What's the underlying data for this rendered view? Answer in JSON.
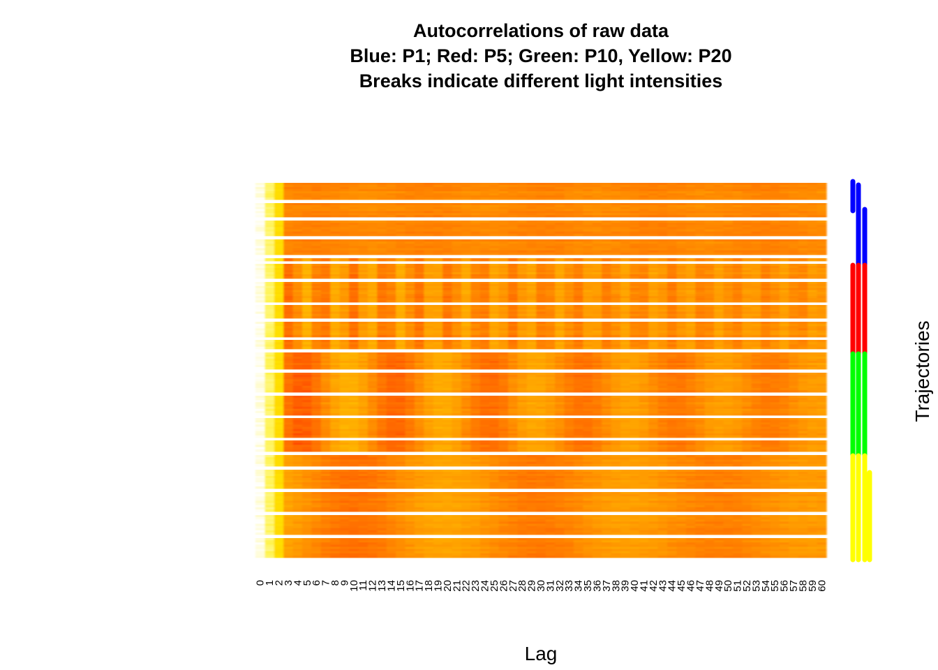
{
  "chart_data": {
    "type": "heatmap",
    "title": "Autocorrelations of raw data",
    "subtitle_lines": [
      "Blue: P1; Red: P5; Green: P10, Yellow: P20",
      "Breaks indicate different light intensities"
    ],
    "xlabel": "Lag",
    "ylabel": "Trajectories",
    "x_ticks": [
      0,
      1,
      2,
      3,
      4,
      5,
      6,
      7,
      8,
      9,
      10,
      11,
      12,
      13,
      14,
      15,
      16,
      17,
      18,
      19,
      20,
      21,
      22,
      23,
      24,
      25,
      26,
      27,
      28,
      29,
      30,
      31,
      32,
      33,
      34,
      35,
      36,
      37,
      38,
      39,
      40,
      41,
      42,
      43,
      44,
      45,
      46,
      47,
      48,
      49,
      50,
      51,
      52,
      53,
      54,
      55,
      56,
      57,
      58,
      59,
      60
    ],
    "color_scale": [
      "#ff2a00",
      "#ff6a00",
      "#ff9a00",
      "#ffc200",
      "#ffee00",
      "#ffffff"
    ],
    "groups": [
      {
        "name": "P1",
        "color": "#0000ff",
        "bands": 4,
        "periodicity": "weak"
      },
      {
        "name": "P5",
        "color": "#ff0000",
        "bands": 5,
        "periodicity": "strong, period ~3"
      },
      {
        "name": "P10",
        "color": "#00ff00",
        "bands": 5,
        "periodicity": "strong, period ~10"
      },
      {
        "name": "P20",
        "color": "#ffff00",
        "bands": 5,
        "periodicity": "moderate, period ~20"
      }
    ],
    "grid": false,
    "legend": "none; group color bars on right"
  }
}
